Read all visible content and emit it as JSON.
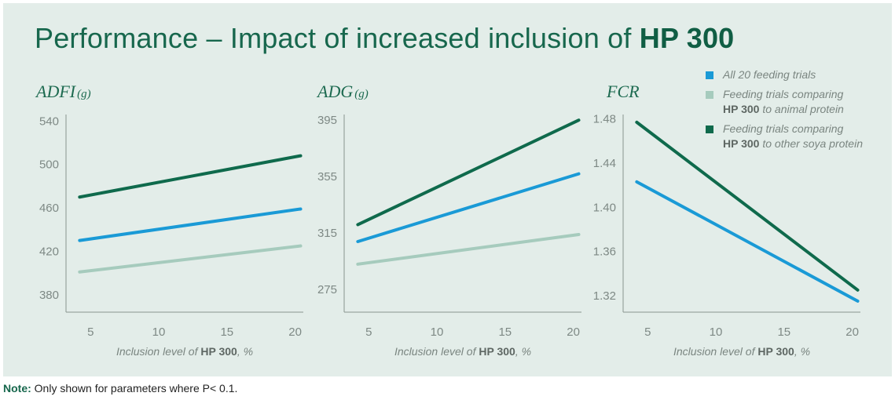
{
  "title": {
    "prefix": "Performance – Impact of increased inclusion of ",
    "product": "HP 300"
  },
  "note": {
    "label": "Note:",
    "text": " Only shown for parameters where P< 0.1."
  },
  "legend": [
    {
      "line1": "All 20 feeding trials",
      "bold": "",
      "rest": "",
      "color": "#1a9ad6"
    },
    {
      "line1": "Feeding trials comparing",
      "bold": "HP 300",
      "rest": " to animal protein",
      "color": "#a6cbbd"
    },
    {
      "line1": "Feeding trials comparing",
      "bold": "HP 300",
      "rest": " to other soya protein",
      "color": "#0f6a4c"
    }
  ],
  "colors": {
    "series_all": "#1a9ad6",
    "series_animal": "#a6cbbd",
    "series_soya": "#0f6a4c"
  },
  "chart_data": [
    {
      "type": "line",
      "title": "ADFI",
      "unit": "(g)",
      "xlabel_prefix": "Inclusion level of ",
      "xlabel_bold": "HP 300",
      "xlabel_suffix": ", %",
      "xticks": [
        5,
        10,
        15,
        20
      ],
      "yticks": [
        540,
        500,
        460,
        420,
        380
      ],
      "xlim": [
        3.2,
        20.6
      ],
      "ylim": [
        364,
        546
      ],
      "series": [
        {
          "name": "All 20 feeding trials",
          "x": [
            4.2,
            20.4
          ],
          "y": [
            430,
            459
          ]
        },
        {
          "name": "Feeding trials comparing HP 300 to animal protein",
          "x": [
            4.2,
            20.4
          ],
          "y": [
            401,
            425
          ]
        },
        {
          "name": "Feeding trials comparing HP 300 to other soya protein",
          "x": [
            4.2,
            20.4
          ],
          "y": [
            470,
            508
          ]
        }
      ]
    },
    {
      "type": "line",
      "title": "ADG",
      "unit": "(g)",
      "xlabel_prefix": "Inclusion level of ",
      "xlabel_bold": "HP 300",
      "xlabel_suffix": ", %",
      "xticks": [
        5,
        10,
        15,
        20
      ],
      "yticks": [
        395,
        355,
        315,
        275
      ],
      "xlim": [
        3.2,
        20.6
      ],
      "ylim": [
        259,
        399
      ],
      "series": [
        {
          "name": "All 20 feeding trials",
          "x": [
            4.2,
            20.4
          ],
          "y": [
            309,
            357
          ]
        },
        {
          "name": "Feeding trials comparing HP 300 to animal protein",
          "x": [
            4.2,
            20.4
          ],
          "y": [
            293,
            314
          ]
        },
        {
          "name": "Feeding trials comparing HP 300 to other soya protein",
          "x": [
            4.2,
            20.4
          ],
          "y": [
            321,
            395
          ]
        }
      ]
    },
    {
      "type": "line",
      "title": "FCR",
      "unit": "",
      "xlabel_prefix": "Inclusion level of ",
      "xlabel_bold": "HP 300",
      "xlabel_suffix": ", %",
      "xticks": [
        5,
        10,
        15,
        20
      ],
      "yticks": [
        1.48,
        1.44,
        1.4,
        1.36,
        1.32
      ],
      "xlim": [
        3.2,
        20.6
      ],
      "ylim": [
        1.305,
        1.484
      ],
      "series": [
        {
          "name": "All 20 feeding trials",
          "x": [
            4.2,
            20.4
          ],
          "y": [
            1.423,
            1.315
          ]
        },
        {
          "name": "Feeding trials comparing HP 300 to other soya protein",
          "x": [
            4.2,
            20.4
          ],
          "y": [
            1.477,
            1.325
          ]
        }
      ]
    }
  ]
}
